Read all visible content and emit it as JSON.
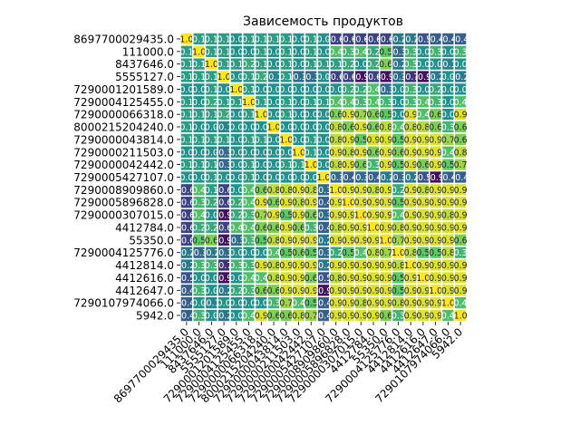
{
  "chart_data": {
    "type": "heatmap",
    "title": "Зависемость продуктов",
    "xlabel": "",
    "ylabel": "",
    "categories": [
      "8697700029435.0",
      "111000.0",
      "8437646.0",
      "5555127.0",
      "7290001201589.0",
      "7290004125455.0",
      "7290000066318.0",
      "8000215204240.0",
      "7290000043814.0",
      "7290000211503.0",
      "7290000042442.0",
      "7290005427107.0",
      "7290008909860.0",
      "7290005896828.0",
      "7290000307015.0",
      "4412784.0",
      "55350.0",
      "7290004125776.0",
      "4412814.0",
      "4412616.0",
      "4412647.0",
      "7290107974066.0",
      "5942.0"
    ],
    "colormap": [
      "#440154",
      "#3b528b",
      "#21918c",
      "#5ec962",
      "#fde725"
    ],
    "value_range": [
      -1,
      1
    ],
    "annotations": "numeric labels in every cell, one decimal",
    "values": [
      [
        1.0,
        0.1,
        0.1,
        0.1,
        0.0,
        0.1,
        0.1,
        0.1,
        0.1,
        0.0,
        0.1,
        0.0,
        -0.6,
        -0.6,
        -0.6,
        -0.6,
        -0.6,
        -0.2,
        -0.2,
        -0.5,
        -0.4,
        -0.4,
        -0.4
      ],
      [
        0.1,
        1.0,
        0.1,
        0.1,
        0.0,
        0.0,
        0.1,
        0.0,
        0.1,
        0.0,
        0.1,
        0.0,
        0.4,
        0.3,
        0.4,
        0.2,
        0.5,
        -0.3,
        0.3,
        0.0,
        0.3,
        0.0,
        0.3
      ],
      [
        0.1,
        0.1,
        1.0,
        0.1,
        0.1,
        0.2,
        0.1,
        0.0,
        0.1,
        0.0,
        0.1,
        0.1,
        0.1,
        0.2,
        0.0,
        0.2,
        0.6,
        -0.2,
        0.3,
        0.0,
        0.0,
        -0.1,
        0.0
      ],
      [
        0.1,
        0.1,
        0.1,
        1.0,
        0.0,
        0.1,
        0.2,
        -0.1,
        0.1,
        -0.3,
        -0.3,
        0.0,
        -0.6,
        -0.6,
        -0.9,
        -0.6,
        -0.9,
        -0.3,
        -0.7,
        -0.9,
        -0.2,
        0.0,
        -0.2
      ],
      [
        0.0,
        0.0,
        0.1,
        0.0,
        1.0,
        0.1,
        0.0,
        0.0,
        0.0,
        0.0,
        0.0,
        0.0,
        0.0,
        0.2,
        0.2,
        0.4,
        -0.3,
        0.0,
        0.3,
        0.0,
        0.2,
        0.0,
        0.0
      ],
      [
        0.1,
        0.0,
        0.2,
        0.1,
        0.1,
        1.0,
        0.1,
        0.0,
        0.1,
        0.0,
        0.1,
        0.1,
        0.4,
        0.4,
        0.3,
        0.4,
        0.3,
        0.0,
        0.3,
        0.4,
        0.3,
        0.0,
        0.4
      ],
      [
        0.1,
        0.1,
        0.1,
        0.2,
        0.0,
        0.1,
        1.0,
        0.0,
        0.1,
        0.0,
        0.0,
        0.0,
        0.6,
        0.9,
        0.7,
        0.6,
        0.5,
        0.0,
        0.9,
        0.4,
        0.6,
        0.0,
        0.9
      ],
      [
        0.1,
        0.0,
        0.0,
        -0.1,
        0.0,
        0.0,
        0.0,
        1.0,
        0.0,
        0.0,
        0.0,
        0.0,
        0.8,
        0.6,
        0.9,
        0.6,
        0.8,
        0.4,
        0.8,
        0.8,
        0.6,
        0.3,
        0.6
      ],
      [
        0.1,
        0.1,
        0.1,
        0.1,
        0.0,
        0.1,
        0.1,
        0.0,
        1.0,
        0.0,
        0.1,
        0.0,
        0.8,
        0.9,
        0.5,
        0.9,
        0.9,
        0.5,
        0.9,
        0.9,
        0.9,
        0.7,
        0.6
      ],
      [
        0.0,
        0.0,
        0.0,
        -0.3,
        0.0,
        0.0,
        0.0,
        0.0,
        0.0,
        1.0,
        0.1,
        0.0,
        0.9,
        0.8,
        0.9,
        0.6,
        0.9,
        0.6,
        0.9,
        0.9,
        0.9,
        0.4,
        0.8
      ],
      [
        0.1,
        0.1,
        0.1,
        -0.3,
        0.0,
        0.1,
        0.0,
        0.0,
        0.1,
        0.1,
        1.0,
        0.0,
        0.8,
        0.9,
        0.6,
        0.3,
        0.9,
        0.5,
        0.9,
        0.6,
        0.9,
        0.5,
        0.7
      ],
      [
        0.0,
        0.0,
        0.1,
        0.0,
        0.0,
        0.1,
        0.0,
        0.0,
        0.0,
        0.0,
        0.0,
        1.0,
        -0.3,
        -0.4,
        -0.3,
        -0.4,
        -0.2,
        -0.3,
        -0.2,
        -0.5,
        -0.9,
        -0.4,
        -0.4
      ],
      [
        -0.6,
        0.4,
        0.1,
        -0.6,
        0.0,
        0.4,
        0.6,
        0.8,
        0.8,
        0.9,
        0.8,
        -0.3,
        1.0,
        0.9,
        0.9,
        0.8,
        0.9,
        0.2,
        0.9,
        0.8,
        0.9,
        0.9,
        0.9
      ],
      [
        -0.6,
        0.3,
        0.2,
        -0.6,
        0.2,
        0.4,
        0.9,
        0.6,
        0.9,
        0.8,
        0.9,
        -0.4,
        0.9,
        1.0,
        0.9,
        0.9,
        0.9,
        0.5,
        0.9,
        0.9,
        0.9,
        0.9,
        0.9
      ],
      [
        -0.6,
        0.4,
        0.0,
        -0.9,
        0.2,
        0.3,
        0.7,
        0.9,
        0.5,
        0.9,
        0.6,
        -0.3,
        0.9,
        0.9,
        1.0,
        0.9,
        0.9,
        0.4,
        0.9,
        0.9,
        0.9,
        0.8,
        0.9
      ],
      [
        -0.6,
        0.2,
        0.2,
        -0.6,
        0.4,
        0.4,
        0.6,
        0.6,
        0.9,
        0.6,
        0.3,
        -0.4,
        0.8,
        0.9,
        0.9,
        1.0,
        0.9,
        0.8,
        0.9,
        0.9,
        0.9,
        0.9,
        0.9
      ],
      [
        -0.6,
        0.5,
        0.6,
        -0.9,
        -0.3,
        0.3,
        0.5,
        0.8,
        0.9,
        0.9,
        0.9,
        -0.2,
        0.9,
        0.9,
        0.9,
        0.9,
        1.0,
        0.7,
        0.9,
        0.9,
        0.9,
        0.9,
        0.6
      ],
      [
        -0.2,
        -0.3,
        -0.2,
        -0.3,
        0.0,
        0.0,
        0.0,
        0.4,
        0.5,
        0.6,
        0.5,
        -0.3,
        0.2,
        0.5,
        0.4,
        0.8,
        0.7,
        1.0,
        0.8,
        0.5,
        0.5,
        0.8,
        0.3
      ],
      [
        -0.2,
        0.3,
        0.3,
        -0.7,
        0.3,
        0.3,
        0.9,
        0.8,
        0.9,
        0.9,
        0.9,
        -0.2,
        0.9,
        0.9,
        0.9,
        0.9,
        0.9,
        0.8,
        1.0,
        0.9,
        0.9,
        0.9,
        0.9
      ],
      [
        -0.5,
        0.0,
        0.0,
        -0.9,
        0.0,
        0.4,
        0.4,
        0.8,
        0.9,
        0.9,
        0.6,
        -0.5,
        0.8,
        0.9,
        0.9,
        0.9,
        0.9,
        0.5,
        0.9,
        1.0,
        0.9,
        0.9,
        0.9
      ],
      [
        -0.4,
        0.3,
        0.0,
        -0.2,
        0.2,
        0.3,
        0.6,
        0.6,
        0.9,
        0.9,
        0.9,
        -0.9,
        0.9,
        0.9,
        0.9,
        0.9,
        0.9,
        0.5,
        0.9,
        0.9,
        1.0,
        0.9,
        0.9
      ],
      [
        -0.4,
        0.0,
        -0.1,
        0.0,
        0.0,
        0.0,
        0.0,
        0.3,
        0.7,
        0.4,
        0.5,
        -0.4,
        0.9,
        0.9,
        0.8,
        0.9,
        0.9,
        0.8,
        0.9,
        0.9,
        0.9,
        1.0,
        0.4
      ],
      [
        -0.4,
        0.3,
        0.0,
        -0.2,
        0.0,
        0.4,
        0.9,
        0.6,
        0.6,
        0.8,
        0.7,
        -0.4,
        0.9,
        0.9,
        0.9,
        0.9,
        0.6,
        0.3,
        0.9,
        0.9,
        0.9,
        0.4,
        1.0
      ]
    ]
  }
}
